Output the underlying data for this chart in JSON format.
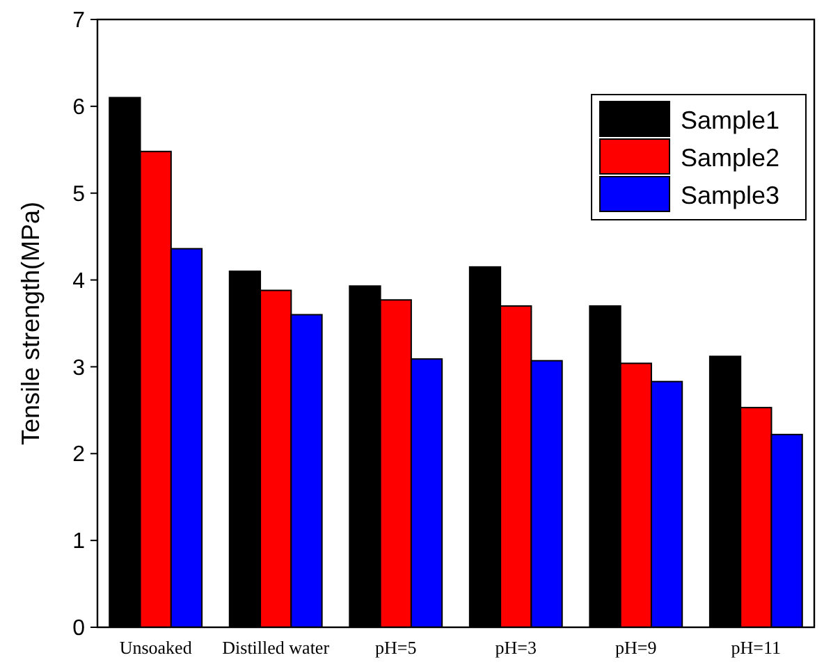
{
  "chart_data": {
    "type": "bar",
    "ylabel": "Tensile strength(MPa)",
    "categories": [
      "Unsoaked",
      "Distilled water",
      "pH=5",
      "pH=3",
      "pH=9",
      "pH=11"
    ],
    "series": [
      {
        "name": "Sample1",
        "color": "#000000",
        "values": [
          6.1,
          4.1,
          3.93,
          4.15,
          3.7,
          3.12
        ]
      },
      {
        "name": "Sample2",
        "color": "#ff0000",
        "values": [
          5.48,
          3.88,
          3.77,
          3.7,
          3.04,
          2.53
        ]
      },
      {
        "name": "Sample3",
        "color": "#0000ff",
        "values": [
          4.36,
          3.6,
          3.09,
          3.07,
          2.83,
          2.22
        ]
      }
    ],
    "ylim": [
      0,
      7
    ],
    "yticks": [
      0,
      1,
      2,
      3,
      4,
      5,
      6,
      7
    ],
    "legend": "top right",
    "grid": false
  }
}
